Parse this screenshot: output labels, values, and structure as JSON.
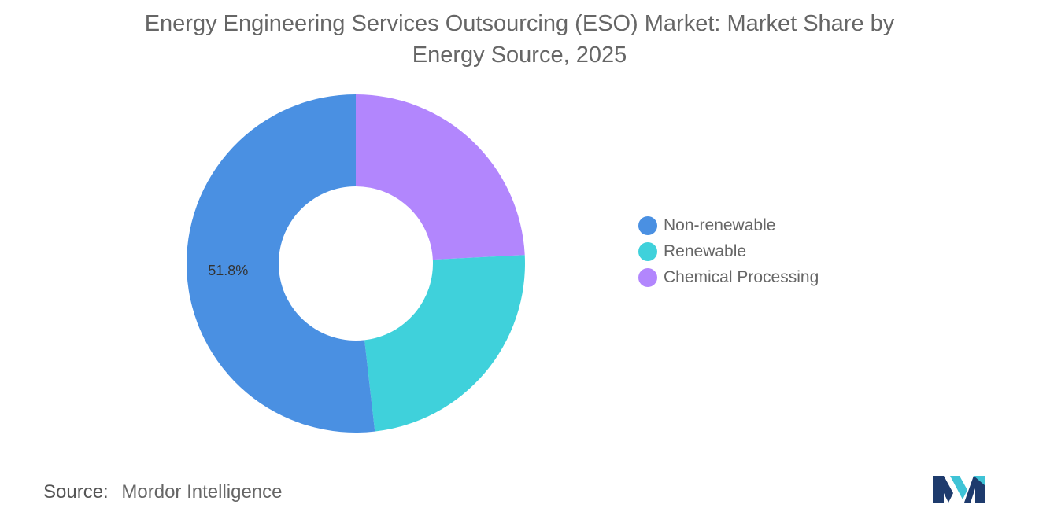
{
  "title_lines": [
    "Energy Engineering Services Outsourcing (ESO) Market: Market Share by",
    "Energy Source, 2025"
  ],
  "chart_data": {
    "type": "pie",
    "donut": true,
    "title": "Energy Engineering Services Outsourcing (ESO) Market: Market Share by Energy Source, 2025",
    "unit": "%",
    "legend_position": "right",
    "slices": [
      {
        "name": "Non-renewable",
        "value": 51.8,
        "color": "#4a90e2",
        "label": "51.8%"
      },
      {
        "name": "Renewable",
        "value": 24.0,
        "color": "#3fd1db",
        "label": ""
      },
      {
        "name": "Chemical Processing",
        "value": 24.2,
        "color": "#b286fd",
        "label": ""
      }
    ],
    "slice_order_clockwise_from_top": [
      "Chemical Processing",
      "Renewable",
      "Non-renewable"
    ]
  },
  "source": {
    "key": "Source:",
    "value": "Mordor Intelligence"
  },
  "logo": {
    "icon": "mordor-intelligence-logo-icon",
    "colors": [
      "#1e3b6d",
      "#3fc3d6"
    ]
  }
}
